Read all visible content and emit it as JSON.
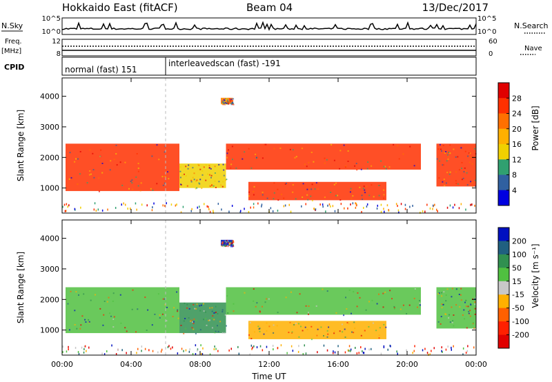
{
  "header": {
    "title": "Hokkaido East (fitACF)",
    "beam": "Beam 04",
    "date": "13/Dec/2017"
  },
  "strips": {
    "nsky_label": "N.Sky",
    "nsky_ticks": [
      "10^5",
      "10^0"
    ],
    "nsearch_label": "N.Search",
    "freq_label_top": "Freq.",
    "freq_label_bottom": "[MHz]",
    "freq_ticks": [
      "12",
      "8"
    ],
    "nave_label": "Nave",
    "nave_ticks": [
      "60",
      "0"
    ],
    "cpid_label": "CPID",
    "cpid_segments": [
      {
        "label": "normal (fast) 151",
        "start_hour": 0,
        "end_hour": 6
      },
      {
        "label": "interleavedscan (fast) -191",
        "start_hour": 6,
        "end_hour": 24
      }
    ]
  },
  "chart_data": [
    {
      "type": "heatmap",
      "quantity": "Power",
      "ylabel": "Slant Range [km]",
      "xlabel": "Time UT",
      "x_range_hours": [
        0,
        24
      ],
      "ylim_km": [
        180,
        4600
      ],
      "yticks": [
        1000,
        2000,
        3000,
        4000
      ],
      "xtick_labels": [
        "00:00",
        "04:00",
        "08:00",
        "12:00",
        "16:00",
        "20:00",
        "00:00"
      ],
      "colorbar": {
        "label": "Power [dB]",
        "ticks": [
          "28",
          "24",
          "20",
          "16",
          "12",
          "8",
          "4"
        ],
        "colors": [
          "#e00000",
          "#ff3000",
          "#ff7000",
          "#ffb000",
          "#f0d000",
          "#30a070",
          "#3060a0",
          "#0000e0"
        ]
      },
      "echo_regions": [
        {
          "t0": 0.2,
          "t1": 6.8,
          "r0": 900,
          "r1": 2450,
          "level": "28"
        },
        {
          "t0": 6.8,
          "t1": 9.5,
          "r0": 1000,
          "r1": 1800,
          "level": "16"
        },
        {
          "t0": 9.5,
          "t1": 20.8,
          "r0": 1600,
          "r1": 2450,
          "level": "28"
        },
        {
          "t0": 10.8,
          "t1": 18.8,
          "r0": 600,
          "r1": 1200,
          "level": "28"
        },
        {
          "t0": 9.2,
          "t1": 9.9,
          "r0": 3750,
          "r1": 3950,
          "level": "24"
        },
        {
          "t0": 21.7,
          "t1": 24,
          "r0": 1050,
          "r1": 2450,
          "level": "28"
        }
      ]
    },
    {
      "type": "heatmap",
      "quantity": "Velocity",
      "ylabel": "Slant Range [km]",
      "xlabel": "Time UT",
      "x_range_hours": [
        0,
        24
      ],
      "ylim_km": [
        180,
        4600
      ],
      "yticks": [
        1000,
        2000,
        3000,
        4000
      ],
      "xtick_labels": [
        "00:00",
        "04:00",
        "08:00",
        "12:00",
        "16:00",
        "20:00",
        "00:00"
      ],
      "colorbar": {
        "label": "Velocity [m s⁻¹]",
        "ticks": [
          "200",
          "100",
          "50",
          "15",
          "-15",
          "-50",
          "-100",
          "-200"
        ],
        "colors": [
          "#0010c0",
          "#206080",
          "#309050",
          "#50c040",
          "#c8c8c8",
          "#ffb000",
          "#ff6000",
          "#ff2000",
          "#e00000"
        ]
      },
      "echo_regions": [
        {
          "t0": 0.2,
          "t1": 6.8,
          "r0": 900,
          "r1": 2400,
          "level": "15"
        },
        {
          "t0": 6.8,
          "t1": 9.5,
          "r0": 900,
          "r1": 1900,
          "level": "50"
        },
        {
          "t0": 9.5,
          "t1": 20.8,
          "r0": 1500,
          "r1": 2400,
          "level": "15"
        },
        {
          "t0": 10.8,
          "t1": 18.8,
          "r0": 700,
          "r1": 1300,
          "level": "-50"
        },
        {
          "t0": 9.2,
          "t1": 9.9,
          "r0": 3750,
          "r1": 3950,
          "level": "200"
        },
        {
          "t0": 21.7,
          "t1": 24,
          "r0": 1050,
          "r1": 2400,
          "level": "15"
        }
      ]
    }
  ]
}
